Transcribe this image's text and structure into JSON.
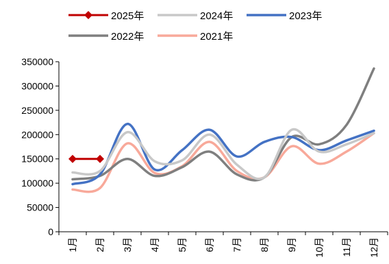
{
  "chart_data": {
    "type": "line",
    "title": "",
    "xlabel": "",
    "ylabel": "",
    "categories": [
      "1月",
      "2月",
      "3月",
      "4月",
      "5月",
      "6月",
      "7月",
      "8月",
      "9月",
      "10月",
      "11月",
      "12月"
    ],
    "ylim": [
      0,
      350000
    ],
    "yticks": [
      0,
      50000,
      100000,
      150000,
      200000,
      250000,
      300000,
      350000
    ],
    "grid": false,
    "legend_position": "top",
    "series": [
      {
        "name": "2025年",
        "color": "#c00000",
        "marker": "diamond",
        "values": [
          150000,
          150000,
          null,
          null,
          null,
          null,
          null,
          null,
          null,
          null,
          null,
          null
        ]
      },
      {
        "name": "2024年",
        "color": "#c8c8c8",
        "marker": "none",
        "values": [
          122000,
          125000,
          205000,
          145000,
          147000,
          200000,
          138000,
          112000,
          210000,
          165000,
          180000,
          203000
        ]
      },
      {
        "name": "2023年",
        "color": "#4472c4",
        "marker": "none",
        "values": [
          98000,
          118000,
          222000,
          128000,
          168000,
          210000,
          155000,
          185000,
          195000,
          168000,
          188000,
          208000
        ]
      },
      {
        "name": "2022年",
        "color": "#7f7f7f",
        "marker": "none",
        "values": [
          108000,
          115000,
          150000,
          115000,
          133000,
          165000,
          118000,
          112000,
          195000,
          180000,
          220000,
          336000
        ]
      },
      {
        "name": "2021年",
        "color": "#f8a99a",
        "marker": "none",
        "values": [
          87000,
          90000,
          182000,
          121000,
          135000,
          185000,
          125000,
          112000,
          176000,
          140000,
          165000,
          203000
        ]
      }
    ]
  }
}
